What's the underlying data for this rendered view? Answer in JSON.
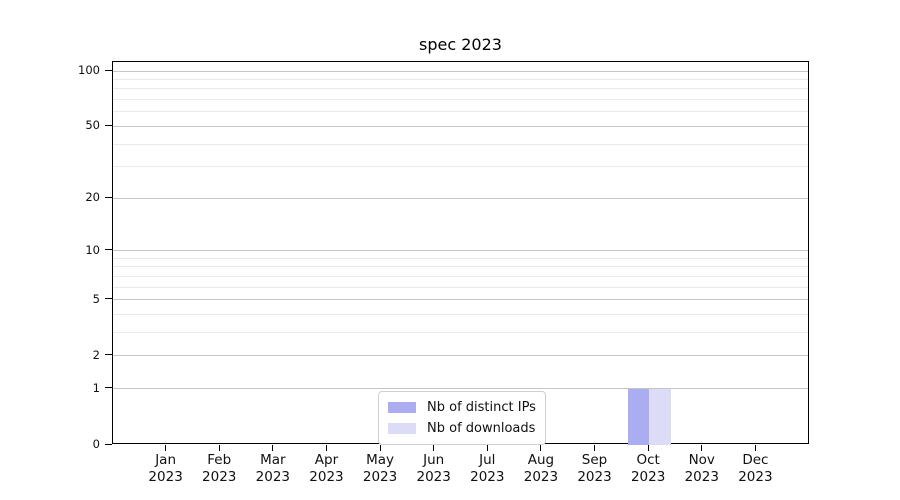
{
  "chart_data": {
    "type": "bar",
    "title": "spec 2023",
    "categories": [
      "Jan 2023",
      "Feb 2023",
      "Mar 2023",
      "Apr 2023",
      "May 2023",
      "Jun 2023",
      "Jul 2023",
      "Aug 2023",
      "Sep 2023",
      "Oct 2023",
      "Nov 2023",
      "Dec 2023"
    ],
    "series": [
      {
        "name": "Nb of distinct IPs",
        "color": "#acacf0",
        "values": [
          0,
          0,
          0,
          0,
          0,
          0,
          0,
          0,
          0,
          1,
          0,
          0
        ]
      },
      {
        "name": "Nb of downloads",
        "color": "#dcdcf7",
        "values": [
          0,
          0,
          0,
          0,
          0,
          0,
          0,
          0,
          0,
          1,
          0,
          0
        ]
      }
    ],
    "xlabel": "",
    "ylabel": "",
    "yscale": "log1p",
    "ylim": [
      0,
      112
    ],
    "yticks": [
      0,
      1,
      2,
      5,
      10,
      20,
      50,
      100
    ],
    "yticks_minor": [
      3,
      4,
      6,
      7,
      8,
      9,
      30,
      40,
      60,
      70,
      80,
      90
    ],
    "grid": "horizontal",
    "legend": {
      "location": "bottom-center-inside",
      "entries": [
        "Nb of distinct IPs",
        "Nb of downloads"
      ]
    }
  },
  "colors": {
    "background": "#ffffff",
    "grid_major": "#c6c6c6",
    "grid_minor": "#eaeaea",
    "spine": "#000000",
    "tick": "#000000",
    "text": "#111111",
    "legend_border": "#d0d0d0",
    "legend_background": "#ffffff"
  }
}
